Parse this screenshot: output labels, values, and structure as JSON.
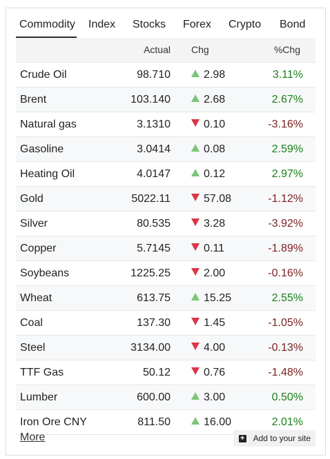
{
  "tabs": [
    {
      "label": "Commodity",
      "active": true
    },
    {
      "label": "Index",
      "active": false
    },
    {
      "label": "Stocks",
      "active": false
    },
    {
      "label": "Forex",
      "active": false
    },
    {
      "label": "Crypto",
      "active": false
    },
    {
      "label": "Bond",
      "active": false
    }
  ],
  "columns": {
    "name": "",
    "actual": "Actual",
    "chg": "Chg",
    "pct": "%Chg"
  },
  "rows": [
    {
      "name": "Crude Oil",
      "actual": "98.710",
      "chg": "2.98",
      "pct": "3.11%",
      "direction": "up"
    },
    {
      "name": "Brent",
      "actual": "103.140",
      "chg": "2.68",
      "pct": "2.67%",
      "direction": "up"
    },
    {
      "name": "Natural gas",
      "actual": "3.1310",
      "chg": "0.10",
      "pct": "-3.16%",
      "direction": "down"
    },
    {
      "name": "Gasoline",
      "actual": "3.0414",
      "chg": "0.08",
      "pct": "2.59%",
      "direction": "up"
    },
    {
      "name": "Heating Oil",
      "actual": "4.0147",
      "chg": "0.12",
      "pct": "2.97%",
      "direction": "up"
    },
    {
      "name": "Gold",
      "actual": "5022.11",
      "chg": "57.08",
      "pct": "-1.12%",
      "direction": "down"
    },
    {
      "name": "Silver",
      "actual": "80.535",
      "chg": "3.28",
      "pct": "-3.92%",
      "direction": "down"
    },
    {
      "name": "Copper",
      "actual": "5.7145",
      "chg": "0.11",
      "pct": "-1.89%",
      "direction": "down"
    },
    {
      "name": "Soybeans",
      "actual": "1225.25",
      "chg": "2.00",
      "pct": "-0.16%",
      "direction": "down"
    },
    {
      "name": "Wheat",
      "actual": "613.75",
      "chg": "15.25",
      "pct": "2.55%",
      "direction": "up"
    },
    {
      "name": "Coal",
      "actual": "137.30",
      "chg": "1.45",
      "pct": "-1.05%",
      "direction": "down"
    },
    {
      "name": "Steel",
      "actual": "3134.00",
      "chg": "4.00",
      "pct": "-0.13%",
      "direction": "down"
    },
    {
      "name": "TTF Gas",
      "actual": "50.12",
      "chg": "0.76",
      "pct": "-1.48%",
      "direction": "down"
    },
    {
      "name": "Lumber",
      "actual": "600.00",
      "chg": "3.00",
      "pct": "0.50%",
      "direction": "up"
    },
    {
      "name": "Iron Ore CNY",
      "actual": "811.50",
      "chg": "16.00",
      "pct": "2.01%",
      "direction": "up"
    }
  ],
  "footer": {
    "more_label": "More",
    "add_label": "Add to your site",
    "add_icon": "plus-square-icon"
  },
  "colors": {
    "up_arrow": "#7cc576",
    "down_arrow": "#dc3545",
    "up_text": "#1a7f1a",
    "down_text": "#7b1f1f"
  }
}
